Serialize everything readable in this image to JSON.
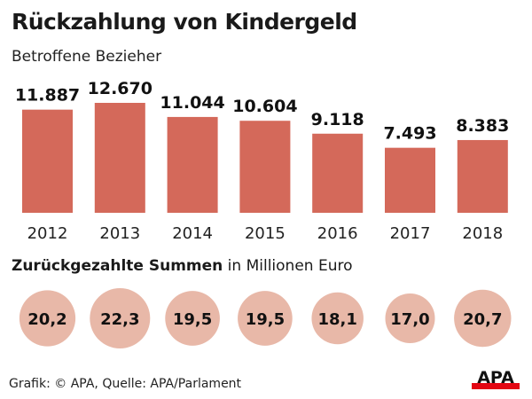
{
  "header": {
    "title": "Rückzahlung von Kindergeld",
    "subtitle": "Betroffene Bezieher"
  },
  "sums_header": {
    "bold": "Zurückgezahlte Summen",
    "rest": " in Millionen Euro"
  },
  "footer": {
    "credit": "Grafik: © APA, Quelle: APA/Parlament",
    "logo_text": "APA"
  },
  "colors": {
    "bar": "#d4695a",
    "circle": "#e8b8a8",
    "logo_red": "#e30613"
  },
  "chart_data": [
    {
      "type": "bar",
      "title": "Rückzahlung von Kindergeld",
      "subtitle": "Betroffene Bezieher",
      "categories": [
        "2012",
        "2013",
        "2014",
        "2015",
        "2016",
        "2017",
        "2018"
      ],
      "values": [
        11887,
        12670,
        11044,
        10604,
        9118,
        7493,
        8383
      ],
      "labels": [
        "11.887",
        "12.670",
        "11.044",
        "10.604",
        "9.118",
        "7.493",
        "8.383"
      ],
      "xlabel": "",
      "ylabel": "",
      "ylim": [
        0,
        12670
      ],
      "grid": false
    },
    {
      "type": "bubble",
      "title": "Zurückgezahlte Summen in Millionen Euro",
      "categories": [
        "2012",
        "2013",
        "2014",
        "2015",
        "2016",
        "2017",
        "2018"
      ],
      "values": [
        20.2,
        22.3,
        19.5,
        19.5,
        18.1,
        17.0,
        20.7
      ],
      "labels": [
        "20,2",
        "22,3",
        "19,5",
        "19,5",
        "18,1",
        "17,0",
        "20,7"
      ]
    }
  ]
}
